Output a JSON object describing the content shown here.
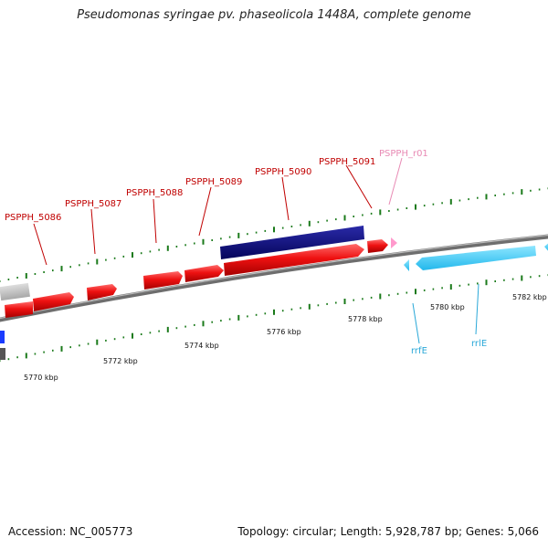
{
  "title": "Pseudomonas syringae pv. phaseolicola 1448A, complete genome",
  "accession": "Accession: NC_005773",
  "summary": "Topology: circular; Length: 5,928,787 bp; Genes: 5,066",
  "genes": [
    {
      "label": "PSPPH_5086"
    },
    {
      "label": "PSPPH_5087"
    },
    {
      "label": "PSPPH_5088"
    },
    {
      "label": "PSPPH_5089"
    },
    {
      "label": "PSPPH_5090"
    },
    {
      "label": "PSPPH_5091"
    },
    {
      "label": "PSPPH_r01"
    },
    {
      "label": "rrfE"
    },
    {
      "label": "rrlE"
    }
  ],
  "scale_labels": [
    "5770 kbp",
    "5772 kbp",
    "5774 kbp",
    "5776 kbp",
    "5778 kbp",
    "5780 kbp",
    "5782 kbp"
  ],
  "colors": {
    "forward_cds": "#ee1111",
    "reverse_cds": "#0a0a80",
    "rna": "#ff99cc",
    "rrna": "#33ccff",
    "backbone": "#808080",
    "tick": "#1a7a1a",
    "label_red": "#c00000"
  }
}
